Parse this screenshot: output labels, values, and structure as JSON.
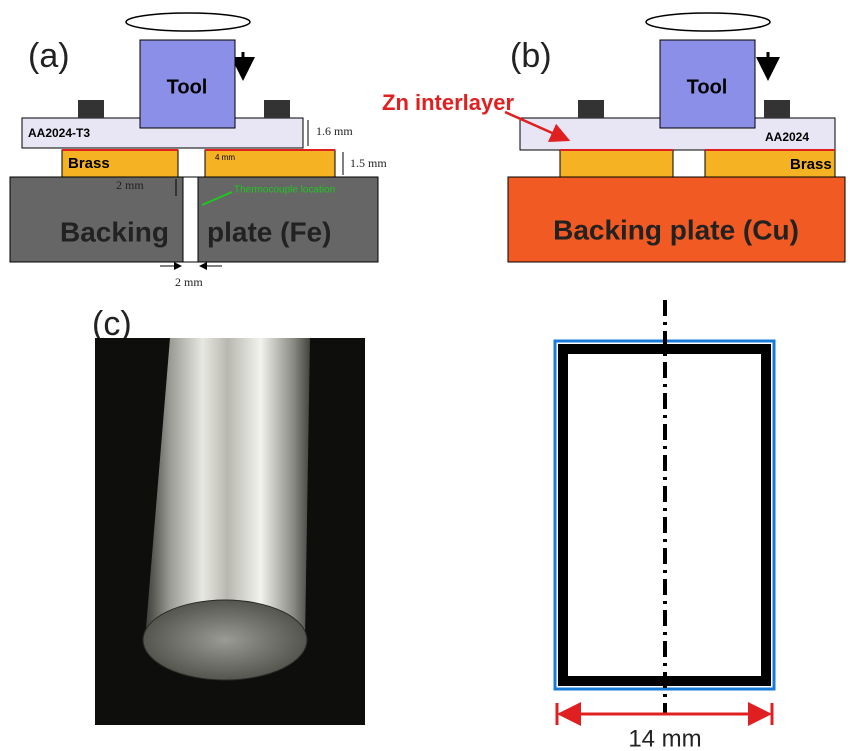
{
  "panel_a": {
    "label": "(a)",
    "tool": "Tool",
    "top_plate": "AA2024-T3",
    "brass": "Brass",
    "dim_top": "1.6 mm",
    "dim_brass": "1.5 mm",
    "dim_gap": "4 mm",
    "dim_depth": "2 mm",
    "thermocouple": "Thermocouple location",
    "backing_left": "Backing",
    "backing_right": "plate (Fe)",
    "dim_slot": "2 mm"
  },
  "panel_b": {
    "label": "(b)",
    "tool": "Tool",
    "interlayer": "Zn interlayer",
    "top_plate": "AA2024",
    "brass": "Brass",
    "backing": "Backing plate (Cu)"
  },
  "panel_c": {
    "label": "(c)",
    "dim_width": "14 mm"
  }
}
